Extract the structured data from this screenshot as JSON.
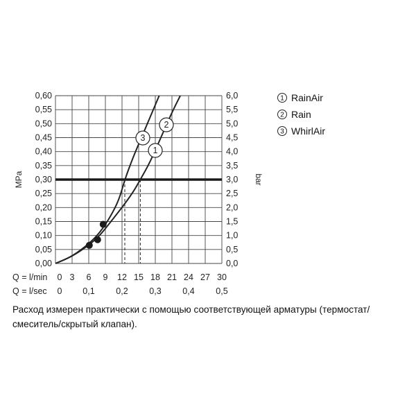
{
  "chart_data": {
    "type": "line",
    "y_left": {
      "label": "MPa",
      "range": [
        0,
        0.6
      ],
      "ticks": [
        "0,00",
        "0,05",
        "0,10",
        "0,15",
        "0,20",
        "0,25",
        "0,30",
        "0,35",
        "0,40",
        "0,45",
        "0,50",
        "0,55",
        "0,60"
      ]
    },
    "y_right": {
      "label": "bar",
      "range": [
        0,
        6
      ],
      "ticks": [
        "0,0",
        "0,5",
        "1,0",
        "1,5",
        "2,0",
        "2,5",
        "3,0",
        "3,5",
        "4,0",
        "4,5",
        "5,0",
        "5,5",
        "6,0"
      ]
    },
    "x_lmin": {
      "label": "Q = l/min",
      "range": [
        0,
        30
      ],
      "ticks": [
        "0",
        "3",
        "6",
        "9",
        "12",
        "15",
        "18",
        "21",
        "24",
        "27",
        "30"
      ]
    },
    "x_lsec": {
      "label": "Q = l/sec",
      "ticks": [
        "0",
        "0,1",
        "0,2",
        "0,3",
        "0,4",
        "0,5"
      ]
    },
    "reference_line": {
      "y_mpa": 0.3
    },
    "series": [
      {
        "id": 1,
        "name": "RainAir",
        "points": [
          [
            0,
            0
          ],
          [
            3,
            0.025
          ],
          [
            6,
            0.065
          ],
          [
            8,
            0.1
          ],
          [
            10,
            0.15
          ],
          [
            12,
            0.2
          ],
          [
            14,
            0.255
          ],
          [
            15.3,
            0.3
          ],
          [
            17,
            0.36
          ],
          [
            19,
            0.45
          ],
          [
            21,
            0.54
          ],
          [
            22.5,
            0.6
          ]
        ],
        "intersection_x": 15.3
      },
      {
        "id": 2,
        "name": "Rain",
        "points": [
          [
            0,
            0
          ],
          [
            3,
            0.025
          ],
          [
            6,
            0.065
          ],
          [
            8,
            0.1
          ],
          [
            10,
            0.15
          ],
          [
            12,
            0.2
          ],
          [
            14,
            0.255
          ],
          [
            15.3,
            0.3
          ],
          [
            17,
            0.36
          ],
          [
            19,
            0.45
          ],
          [
            21,
            0.54
          ],
          [
            22.5,
            0.6
          ]
        ],
        "intersection_x": 15.3
      },
      {
        "id": 3,
        "name": "WhirlAir",
        "points": [
          [
            0,
            0
          ],
          [
            3,
            0.025
          ],
          [
            6,
            0.07
          ],
          [
            8,
            0.11
          ],
          [
            10,
            0.17
          ],
          [
            11.5,
            0.23
          ],
          [
            12.5,
            0.3
          ],
          [
            14,
            0.38
          ],
          [
            15.5,
            0.45
          ],
          [
            17,
            0.52
          ],
          [
            18.7,
            0.6
          ]
        ],
        "intersection_x": 12.5
      }
    ],
    "markers": [
      [
        6.1,
        0.065
      ],
      [
        7.6,
        0.085
      ],
      [
        8.6,
        0.14
      ]
    ],
    "curve_labels": [
      "1",
      "2",
      "3"
    ],
    "legend": [
      {
        "num": "1",
        "name": "RainAir"
      },
      {
        "num": "2",
        "name": "Rain"
      },
      {
        "num": "3",
        "name": "WhirlAir"
      }
    ],
    "grid": true
  },
  "caption": "Расход измерен практически с помощью соответствующей арматуры (термостат/смеситель/скрытый клапан)."
}
